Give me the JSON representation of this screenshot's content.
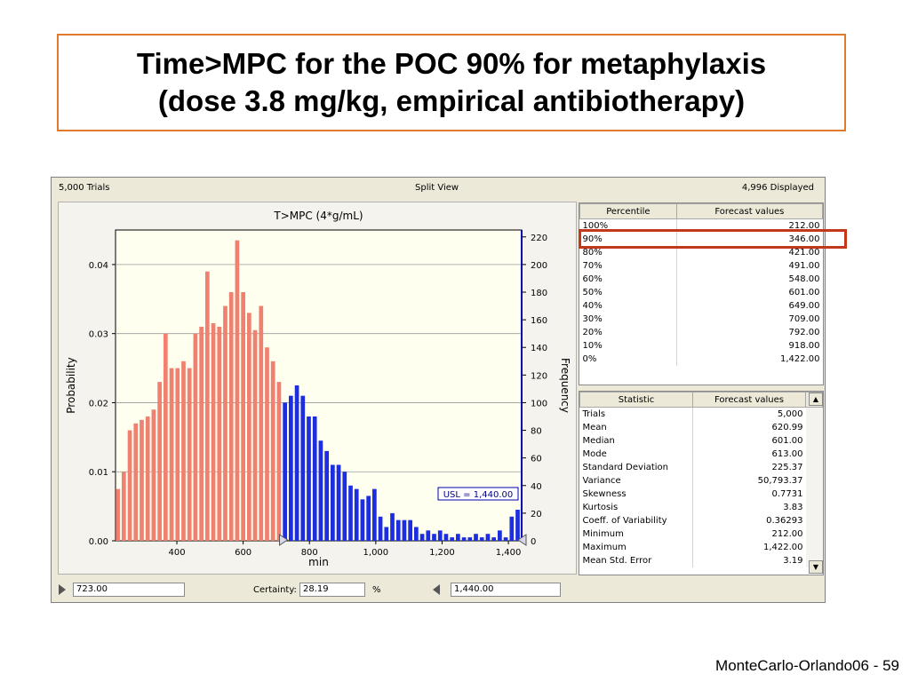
{
  "slide": {
    "title_line1": "Time>MPC for the POC 90% for metaphylaxis",
    "title_line2": "(dose 3.8 mg/kg, empirical antibiotherapy)",
    "footer": "MonteCarlo-Orlando06 - 59"
  },
  "app": {
    "trials_label": "5,000 Trials",
    "view_label": "Split View",
    "displayed_label": "4,996 Displayed",
    "lower_value": "723.00",
    "certainty_label": "Certainty:",
    "certainty_value": "28.19",
    "certainty_unit": "%",
    "upper_value": "1,440.00"
  },
  "percentile_table": {
    "headers": [
      "Percentile",
      "Forecast values"
    ],
    "rows": [
      [
        "100%",
        "212.00"
      ],
      [
        "90%",
        "346.00"
      ],
      [
        "80%",
        "421.00"
      ],
      [
        "70%",
        "491.00"
      ],
      [
        "60%",
        "548.00"
      ],
      [
        "50%",
        "601.00"
      ],
      [
        "40%",
        "649.00"
      ],
      [
        "30%",
        "709.00"
      ],
      [
        "20%",
        "792.00"
      ],
      [
        "10%",
        "918.00"
      ],
      [
        "0%",
        "1,422.00"
      ]
    ]
  },
  "stats_table": {
    "headers": [
      "Statistic",
      "Forecast values"
    ],
    "rows": [
      [
        "Trials",
        "5,000"
      ],
      [
        "Mean",
        "620.99"
      ],
      [
        "Median",
        "601.00"
      ],
      [
        "Mode",
        "613.00"
      ],
      [
        "Standard Deviation",
        "225.37"
      ],
      [
        "Variance",
        "50,793.37"
      ],
      [
        "Skewness",
        "0.7731"
      ],
      [
        "Kurtosis",
        "3.83"
      ],
      [
        "Coeff. of Variability",
        "0.36293"
      ],
      [
        "Minimum",
        "212.00"
      ],
      [
        "Maximum",
        "1,422.00"
      ],
      [
        "Mean Std. Error",
        "3.19"
      ]
    ]
  },
  "chart_data": {
    "type": "bar",
    "title": "T>MPC (4*g/mL)",
    "xlabel": "min",
    "ylabel": "Probability",
    "y2label": "Frequency",
    "xlim": [
      215,
      1440
    ],
    "ylim": [
      0,
      0.045
    ],
    "y2lim": [
      0,
      225
    ],
    "x_ticks": [
      400,
      600,
      800,
      1000,
      1200,
      1400
    ],
    "x_tick_labels": [
      "400",
      "600",
      "800",
      "1,000",
      "1,200",
      "1,400"
    ],
    "y_ticks": [
      0,
      0.01,
      0.02,
      0.03,
      0.04
    ],
    "y_tick_labels": [
      "0.00",
      "0.01",
      "0.02",
      "0.03",
      "0.04"
    ],
    "y2_ticks": [
      0,
      20,
      40,
      60,
      80,
      100,
      120,
      140,
      160,
      180,
      200,
      220
    ],
    "grid": true,
    "lower_threshold": 723,
    "upper_threshold": 1440,
    "usl_label": "USL = 1,440.00",
    "colors": {
      "below": "#f08070",
      "above": "#1c2ee0",
      "axis2": "#0000b0",
      "plot_bg": "#fffff0"
    },
    "bin_width": 18,
    "series": [
      {
        "x": [
          222,
          240,
          258,
          276,
          294,
          312,
          330,
          348,
          366,
          384,
          402,
          420,
          438,
          456,
          474,
          492,
          510,
          528,
          546,
          564,
          582,
          600,
          618,
          636,
          654,
          672,
          690,
          708,
          726,
          744,
          762,
          780,
          798,
          816,
          834,
          852,
          870,
          888,
          906,
          924,
          942,
          960,
          978,
          996,
          1014,
          1032,
          1050,
          1068,
          1086,
          1104,
          1122,
          1140,
          1158,
          1176,
          1194,
          1212,
          1230,
          1248,
          1266,
          1284,
          1302,
          1320,
          1338,
          1356,
          1374,
          1392,
          1410,
          1428
        ],
        "values": [
          0.0075,
          0.01,
          0.016,
          0.017,
          0.0175,
          0.018,
          0.019,
          0.023,
          0.03,
          0.025,
          0.025,
          0.026,
          0.025,
          0.03,
          0.031,
          0.039,
          0.0315,
          0.031,
          0.034,
          0.036,
          0.0435,
          0.036,
          0.033,
          0.0305,
          0.034,
          0.028,
          0.026,
          0.023,
          0.02,
          0.021,
          0.0225,
          0.021,
          0.018,
          0.018,
          0.0145,
          0.013,
          0.011,
          0.011,
          0.01,
          0.008,
          0.0075,
          0.006,
          0.0065,
          0.0075,
          0.0035,
          0.002,
          0.004,
          0.003,
          0.003,
          0.003,
          0.002,
          0.001,
          0.0015,
          0.001,
          0.0015,
          0.001,
          0.0005,
          0.001,
          0.0005,
          0.0005,
          0.001,
          0.0005,
          0.001,
          0.0005,
          0.0015,
          0.0005,
          0.0035,
          0.0045
        ]
      }
    ]
  }
}
